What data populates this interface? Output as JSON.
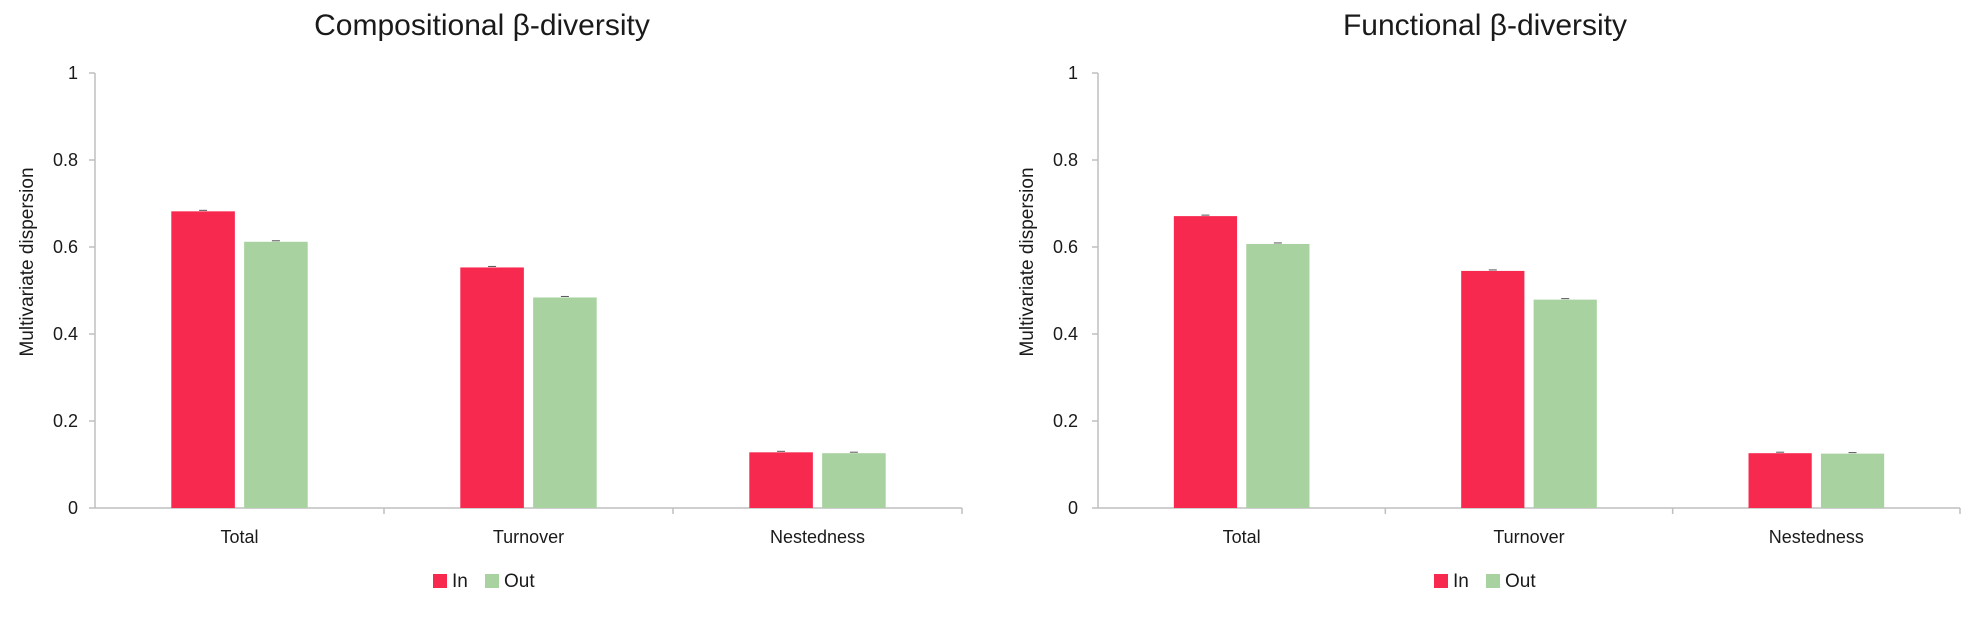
{
  "legend": [
    {
      "label": "In",
      "color": "#f8294f"
    },
    {
      "label": "Out",
      "color": "#a8d3a0"
    }
  ],
  "chart_data": [
    {
      "type": "bar",
      "title": "Compositional β-diversity",
      "xlabel": "",
      "ylabel": "Multivariate dispersion",
      "ylim": [
        0,
        1
      ],
      "yticks": [
        "0",
        "0.2",
        "0.4",
        "0.6",
        "0.8",
        "1"
      ],
      "categories": [
        "Total",
        "Turnover",
        "Nestedness"
      ],
      "series": [
        {
          "name": "In",
          "color": "#f8294f",
          "values": [
            0.682,
            0.553,
            0.128
          ]
        },
        {
          "name": "Out",
          "color": "#a8d3a0",
          "values": [
            0.612,
            0.484,
            0.126
          ]
        }
      ],
      "grid": false,
      "legend_position": "bottom"
    },
    {
      "type": "bar",
      "title": "Functional β-diversity",
      "xlabel": "",
      "ylabel": "Multivariate dispersion",
      "ylim": [
        0,
        1
      ],
      "yticks": [
        "0",
        "0.2",
        "0.4",
        "0.6",
        "0.8",
        "1"
      ],
      "categories": [
        "Total",
        "Turnover",
        "Nestedness"
      ],
      "series": [
        {
          "name": "In",
          "color": "#f8294f",
          "values": [
            0.671,
            0.545,
            0.126
          ]
        },
        {
          "name": "Out",
          "color": "#a8d3a0",
          "values": [
            0.607,
            0.479,
            0.125
          ]
        }
      ],
      "grid": false,
      "legend_position": "bottom"
    }
  ]
}
